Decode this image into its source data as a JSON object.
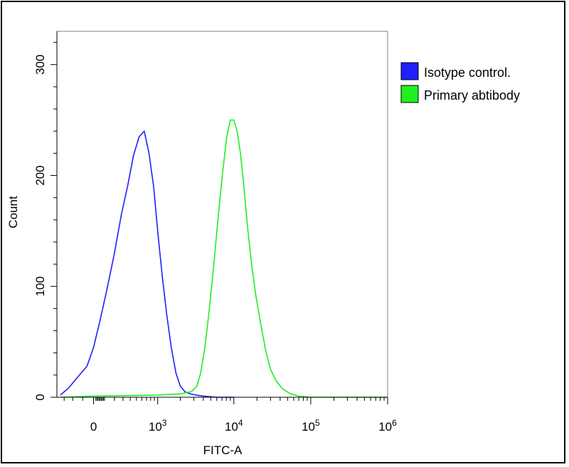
{
  "chart_data": {
    "type": "line",
    "title": "",
    "xlabel": "FITC-A",
    "ylabel": "Count",
    "xscale": "biexponential",
    "xlim": [
      -400,
      1000000
    ],
    "ylim": [
      0,
      330
    ],
    "x_ticks": [
      {
        "value": 0,
        "label": "0"
      },
      {
        "value": 1000,
        "label": "10",
        "exp": "3"
      },
      {
        "value": 10000,
        "label": "10",
        "exp": "4"
      },
      {
        "value": 100000,
        "label": "10",
        "exp": "5"
      },
      {
        "value": 1000000,
        "label": "10",
        "exp": "6"
      }
    ],
    "y_ticks": [
      0,
      100,
      200,
      300
    ],
    "grid": false,
    "legend_position": "right",
    "series": [
      {
        "name": "Isotype control.",
        "color": "#1f1fff",
        "x": [
          -350,
          -250,
          -150,
          -60,
          0,
          60,
          130,
          200,
          280,
          360,
          450,
          550,
          650,
          760,
          880,
          1000,
          1150,
          1320,
          1520,
          1750,
          2000,
          2300,
          2700,
          3200,
          4000,
          6000,
          10000
        ],
        "y": [
          2,
          8,
          18,
          28,
          45,
          70,
          100,
          130,
          165,
          190,
          218,
          235,
          240,
          220,
          190,
          150,
          110,
          75,
          45,
          22,
          10,
          5,
          3,
          2,
          1,
          0,
          0
        ]
      },
      {
        "name": "Primary abtibody",
        "color": "#1fef1f",
        "x": [
          -350,
          0,
          1000,
          2000,
          2800,
          3300,
          3700,
          4200,
          4800,
          5500,
          6300,
          7200,
          8100,
          9000,
          10000,
          11000,
          12200,
          13500,
          15000,
          17000,
          19500,
          22500,
          26000,
          30000,
          36000,
          44000,
          55000,
          70000,
          100000,
          200000,
          1000000
        ],
        "y": [
          0,
          1,
          2,
          3,
          5,
          10,
          22,
          45,
          80,
          120,
          165,
          205,
          235,
          250,
          250,
          240,
          220,
          190,
          155,
          120,
          90,
          65,
          42,
          25,
          14,
          7,
          3,
          1,
          0,
          0,
          0
        ]
      }
    ]
  }
}
